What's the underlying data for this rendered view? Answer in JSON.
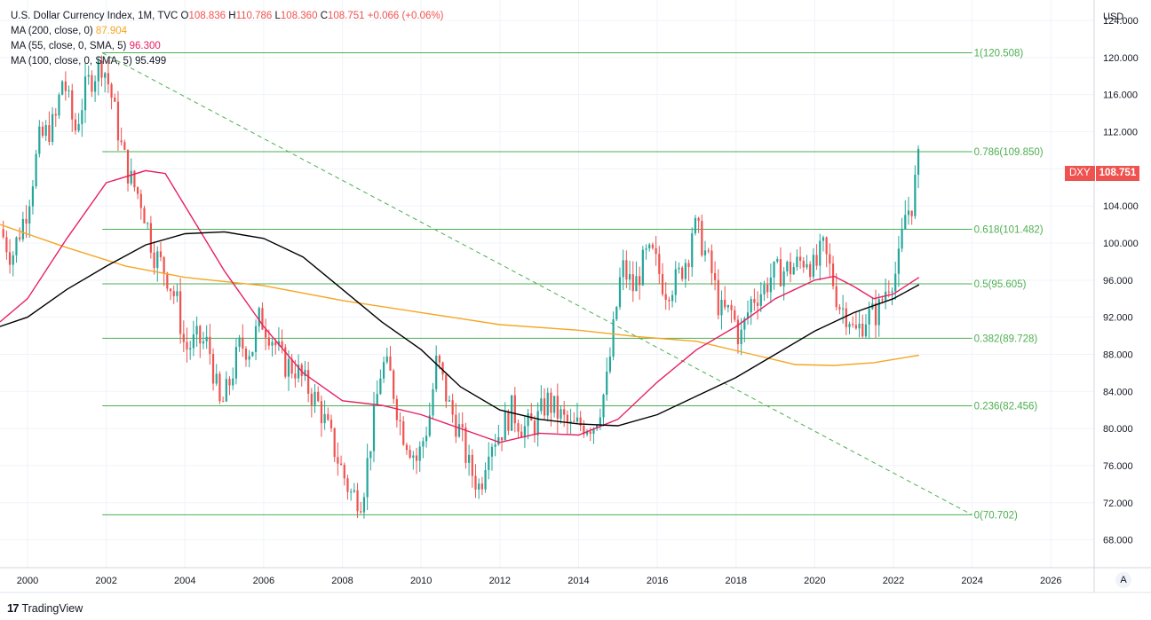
{
  "legend": {
    "title": "U.S. Dollar Currency Index, 1M, TVC",
    "open_label": "O",
    "open": "108.836",
    "high_label": "H",
    "high": "110.786",
    "low_label": "L",
    "low": "108.360",
    "close_label": "C",
    "close": "108.751",
    "change": "+0.066 (+0.06%)",
    "ma200_label": "MA (200, close, 0)",
    "ma200_value": "87.904",
    "ma55_label": "MA (55, close, 0, SMA, 5)",
    "ma55_value": "96.300",
    "ma100_label": "MA (100, close, 0, SMA, 5)",
    "ma100_value": "95.499"
  },
  "price_badge": {
    "symbol": "DXY",
    "value": "108.751"
  },
  "footer": {
    "logo": "17",
    "brand": "TradingView"
  },
  "auto_button": "A",
  "colors": {
    "up": "#26a69a",
    "down": "#ef5350",
    "fib": "#4caf50",
    "ma200": "#f5a623",
    "ma55": "#e91e63",
    "ma100": "#000000",
    "trend": "#4caf50"
  },
  "chart_data": {
    "type": "candlestick",
    "title": "U.S. Dollar Currency Index, 1M, TVC",
    "currency": "USD",
    "x_ticks": [
      "2000",
      "2002",
      "2004",
      "2006",
      "2008",
      "2010",
      "2012",
      "2014",
      "2016",
      "2018",
      "2020",
      "2022",
      "2024",
      "2026"
    ],
    "x_range": [
      1999.3,
      2027.1
    ],
    "y_ticks": [
      "68.000",
      "72.000",
      "76.000",
      "80.000",
      "84.000",
      "88.000",
      "92.000",
      "96.000",
      "100.000",
      "104.000",
      "108.000",
      "112.000",
      "116.000",
      "120.000",
      "124.000"
    ],
    "y_range": [
      65.0,
      126.2
    ],
    "fib_levels": [
      {
        "label": "1(120.508)",
        "value": 120.508
      },
      {
        "label": "0.786(109.850)",
        "value": 109.85
      },
      {
        "label": "0.618(101.482)",
        "value": 101.482
      },
      {
        "label": "0.5(95.605)",
        "value": 95.605
      },
      {
        "label": "0.382(89.728)",
        "value": 89.728
      },
      {
        "label": "0.236(82.456)",
        "value": 82.456
      },
      {
        "label": "0(70.702)",
        "value": 70.702
      }
    ],
    "fib_x_range": [
      2001.9,
      2024.0
    ],
    "trendline": [
      [
        2001.9,
        120.5
      ],
      [
        2024.0,
        70.7
      ]
    ],
    "price_path": [
      [
        1999.3,
        101.5
      ],
      [
        1999.6,
        98.5
      ],
      [
        2000.0,
        104
      ],
      [
        2000.3,
        111
      ],
      [
        2000.7,
        113
      ],
      [
        2000.9,
        118
      ],
      [
        2001.2,
        112
      ],
      [
        2001.5,
        117
      ],
      [
        2001.9,
        119.5
      ],
      [
        2002.1,
        116.5
      ],
      [
        2002.4,
        110
      ],
      [
        2002.6,
        107
      ],
      [
        2002.9,
        104.5
      ],
      [
        2003.2,
        99
      ],
      [
        2003.5,
        97
      ],
      [
        2003.8,
        93.5
      ],
      [
        2004.0,
        88.5
      ],
      [
        2004.3,
        89.5
      ],
      [
        2004.6,
        89
      ],
      [
        2004.9,
        82
      ],
      [
        2005.1,
        84.5
      ],
      [
        2005.4,
        89
      ],
      [
        2005.7,
        88.5
      ],
      [
        2005.9,
        92
      ],
      [
        2006.2,
        90
      ],
      [
        2006.5,
        87
      ],
      [
        2006.8,
        86.5
      ],
      [
        2007.1,
        84.5
      ],
      [
        2007.4,
        82.5
      ],
      [
        2007.7,
        79
      ],
      [
        2007.9,
        76.5
      ],
      [
        2008.2,
        73
      ],
      [
        2008.5,
        72.5
      ],
      [
        2008.8,
        81
      ],
      [
        2009.0,
        87
      ],
      [
        2009.2,
        86
      ],
      [
        2009.5,
        80
      ],
      [
        2009.9,
        76.5
      ],
      [
        2010.2,
        81
      ],
      [
        2010.4,
        87.5
      ],
      [
        2010.7,
        82.5
      ],
      [
        2011.0,
        79.5
      ],
      [
        2011.2,
        76
      ],
      [
        2011.5,
        73.5
      ],
      [
        2011.7,
        78.5
      ],
      [
        2012.0,
        79.5
      ],
      [
        2012.3,
        82
      ],
      [
        2012.6,
        80
      ],
      [
        2012.9,
        80.5
      ],
      [
        2013.2,
        83
      ],
      [
        2013.5,
        81.5
      ],
      [
        2013.8,
        80
      ],
      [
        2014.1,
        80.5
      ],
      [
        2014.4,
        80.5
      ],
      [
        2014.7,
        84.5
      ],
      [
        2014.9,
        91
      ],
      [
        2015.1,
        97.5
      ],
      [
        2015.4,
        95
      ],
      [
        2015.7,
        98.5
      ],
      [
        2015.9,
        98.5
      ],
      [
        2016.2,
        95
      ],
      [
        2016.5,
        96
      ],
      [
        2016.8,
        99
      ],
      [
        2016.9,
        102
      ],
      [
        2017.1,
        100.5
      ],
      [
        2017.4,
        96.5
      ],
      [
        2017.6,
        92.5
      ],
      [
        2017.9,
        92.5
      ],
      [
        2018.1,
        89.5
      ],
      [
        2018.4,
        94
      ],
      [
        2018.7,
        95
      ],
      [
        2018.9,
        96.5
      ],
      [
        2019.2,
        97
      ],
      [
        2019.5,
        97.5
      ],
      [
        2019.8,
        98.5
      ],
      [
        2020.0,
        97
      ],
      [
        2020.2,
        99.5
      ],
      [
        2020.4,
        97
      ],
      [
        2020.6,
        93.5
      ],
      [
        2020.9,
        92
      ],
      [
        2021.0,
        90
      ],
      [
        2021.3,
        92
      ],
      [
        2021.6,
        92.5
      ],
      [
        2021.8,
        95
      ],
      [
        2021.9,
        96
      ],
      [
        2022.1,
        97
      ],
      [
        2022.3,
        103
      ],
      [
        2022.5,
        104.5
      ],
      [
        2022.6,
        108.5
      ],
      [
        2022.65,
        108.75
      ]
    ],
    "ma200": [
      [
        1999.3,
        102
      ],
      [
        2001.0,
        99.5
      ],
      [
        2002.5,
        97.5
      ],
      [
        2004.0,
        96.3
      ],
      [
        2006.0,
        95.4
      ],
      [
        2008.0,
        93.8
      ],
      [
        2010.0,
        92.5
      ],
      [
        2012.0,
        91.2
      ],
      [
        2014.0,
        90.6
      ],
      [
        2015.5,
        89.9
      ],
      [
        2017.0,
        89.4
      ],
      [
        2018.5,
        87.9
      ],
      [
        2019.5,
        86.9
      ],
      [
        2020.5,
        86.8
      ],
      [
        2021.5,
        87.1
      ],
      [
        2022.65,
        87.9
      ]
    ],
    "ma55": [
      [
        1999.3,
        91.5
      ],
      [
        2000.0,
        94
      ],
      [
        2001.0,
        100.5
      ],
      [
        2002.0,
        106.5
      ],
      [
        2003.0,
        107.8
      ],
      [
        2003.5,
        107.5
      ],
      [
        2004.0,
        104
      ],
      [
        2005.0,
        97
      ],
      [
        2006.0,
        91
      ],
      [
        2007.0,
        86
      ],
      [
        2008.0,
        83
      ],
      [
        2009.0,
        82.5
      ],
      [
        2010.0,
        81.5
      ],
      [
        2011.0,
        80
      ],
      [
        2012.0,
        78.5
      ],
      [
        2013.0,
        79.5
      ],
      [
        2014.0,
        79.3
      ],
      [
        2015.0,
        81
      ],
      [
        2016.0,
        85
      ],
      [
        2017.0,
        88.5
      ],
      [
        2018.0,
        91
      ],
      [
        2019.0,
        94
      ],
      [
        2020.0,
        96
      ],
      [
        2020.5,
        96.4
      ],
      [
        2021.0,
        95.3
      ],
      [
        2021.5,
        94
      ],
      [
        2022.0,
        94.5
      ],
      [
        2022.65,
        96.3
      ]
    ],
    "ma100": [
      [
        1999.3,
        91
      ],
      [
        2000.0,
        92
      ],
      [
        2001.0,
        95
      ],
      [
        2002.0,
        97.5
      ],
      [
        2003.0,
        99.8
      ],
      [
        2004.0,
        101
      ],
      [
        2005.0,
        101.2
      ],
      [
        2006.0,
        100.5
      ],
      [
        2007.0,
        98.5
      ],
      [
        2008.0,
        95
      ],
      [
        2009.0,
        91.5
      ],
      [
        2010.0,
        88.5
      ],
      [
        2011.0,
        84.5
      ],
      [
        2012.0,
        82
      ],
      [
        2013.0,
        81
      ],
      [
        2014.0,
        80.5
      ],
      [
        2015.0,
        80.3
      ],
      [
        2016.0,
        81.5
      ],
      [
        2017.0,
        83.5
      ],
      [
        2018.0,
        85.5
      ],
      [
        2019.0,
        88
      ],
      [
        2020.0,
        90.5
      ],
      [
        2021.0,
        92.5
      ],
      [
        2022.0,
        94
      ],
      [
        2022.65,
        95.5
      ]
    ]
  }
}
